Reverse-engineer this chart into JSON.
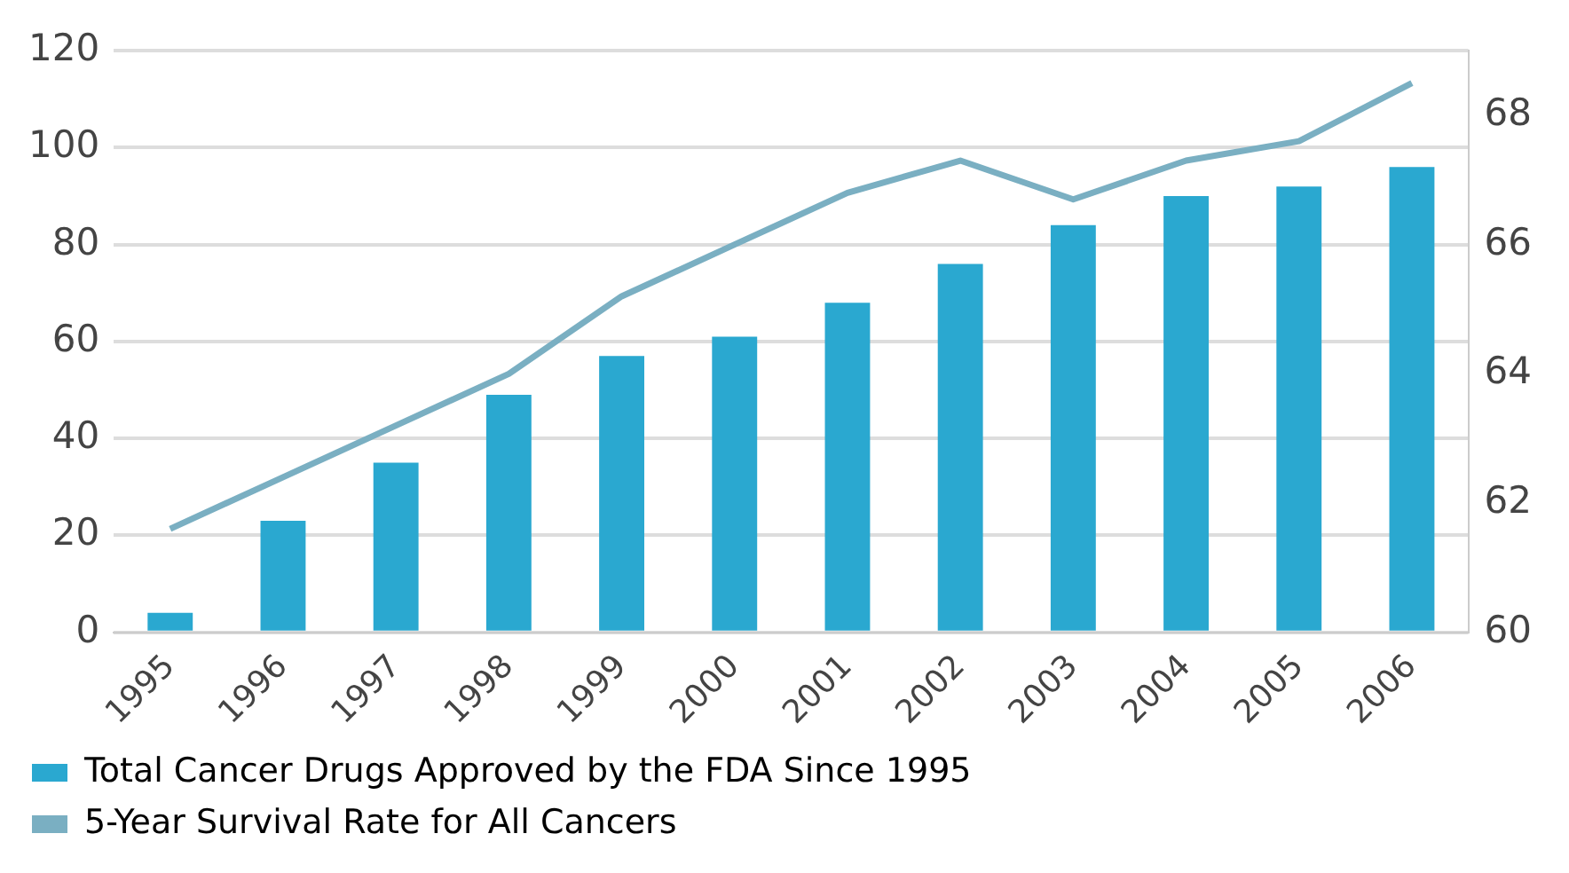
{
  "chart_data": {
    "type": "bar",
    "categories": [
      "1995",
      "1996",
      "1997",
      "1998",
      "1999",
      "2000",
      "2001",
      "2002",
      "2003",
      "2004",
      "2005",
      "2006"
    ],
    "series": [
      {
        "name": "Total Cancer Drugs Approved by the FDA Since 1995",
        "color": "#2aa8d0",
        "values": [
          4,
          23,
          35,
          49,
          57,
          61,
          68,
          76,
          84,
          90,
          92,
          96
        ]
      },
      {
        "name": "5-Year Survival Rate for All Cancers",
        "type": "line",
        "axis": "y2",
        "color": "#7aafc2",
        "values": [
          61.6,
          62.4,
          63.2,
          64.0,
          65.2,
          66.0,
          66.8,
          67.3,
          66.7,
          67.3,
          67.6,
          68.5
        ]
      }
    ],
    "ylim": [
      0,
      120
    ],
    "yticks": [
      0,
      20,
      40,
      60,
      80,
      100,
      120
    ],
    "y2lim": [
      60,
      69
    ],
    "y2ticks": [
      60,
      62,
      64,
      66,
      68
    ],
    "grid": "y",
    "legend": "bottom",
    "marker": "none"
  }
}
